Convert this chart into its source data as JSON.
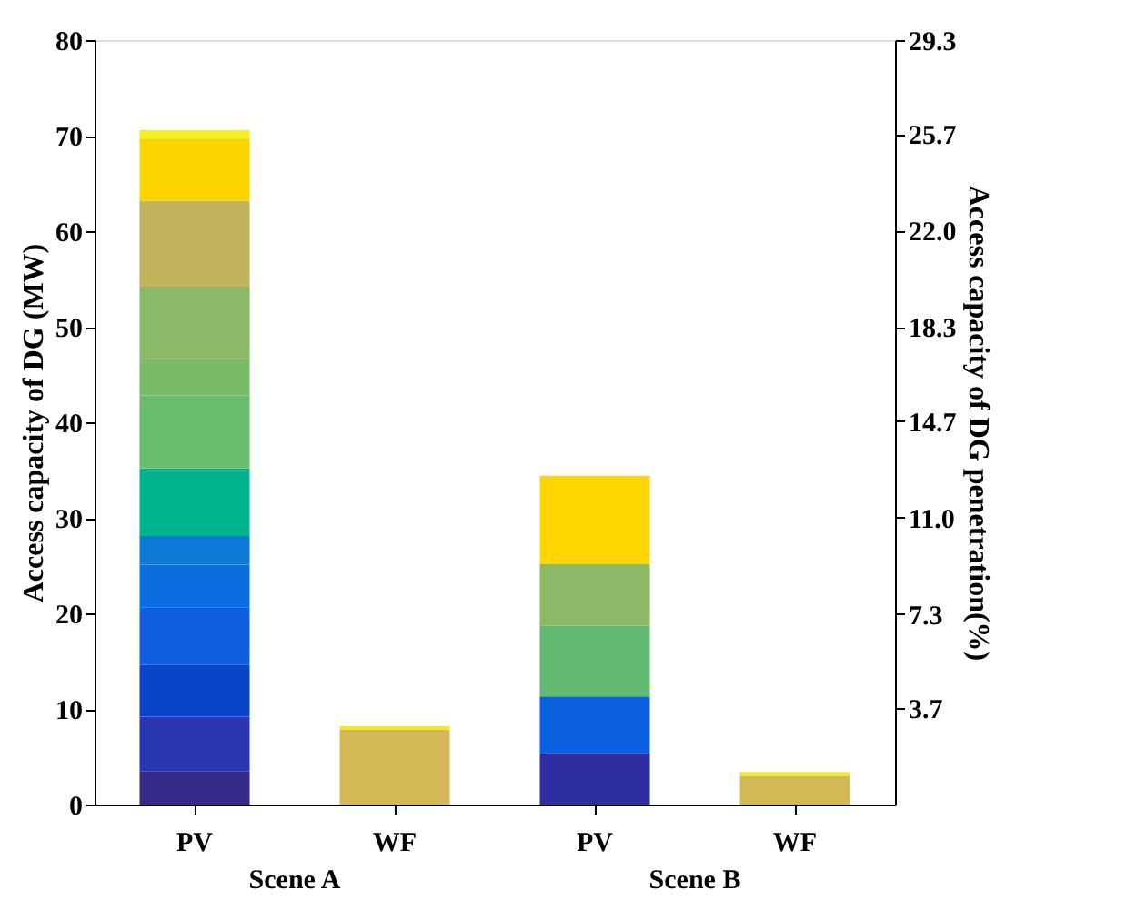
{
  "chart_data": {
    "type": "bar",
    "stacked": true,
    "categories": [
      "PV",
      "WF",
      "PV",
      "WF"
    ],
    "ylabel": "Access capacity of DG (MW)",
    "y2label": "Access capacity of DG penetration(%)",
    "annotations": [
      "Scene A",
      "Scene B"
    ],
    "ylim": [
      0,
      80
    ],
    "yticks": [
      0,
      10,
      20,
      30,
      40,
      50,
      60,
      70,
      80
    ],
    "y2lim": [
      0,
      29.3
    ],
    "y2ticks": [
      3.7,
      7.3,
      {
        "value": 11,
        "label": "11.0"
      },
      14.7,
      18.3,
      {
        "value": 22,
        "label": "22.0"
      },
      25.7,
      29.3
    ],
    "grid": false,
    "series": [
      {
        "values": [
          3.5,
          7.8,
          5.4,
          3.0
        ],
        "colors": [
          "#352a87",
          "#d4b855",
          "#2e2ea0",
          "#d4b855"
        ]
      },
      {
        "values": [
          5.7,
          0.4,
          5.9,
          0.4
        ],
        "colors": [
          "#2a35b0",
          "#f0e830",
          "#0a60e0",
          "#f0e830"
        ]
      },
      {
        "values": [
          5.4,
          null,
          7.4,
          null
        ],
        "colors": [
          "#0a45c8",
          null,
          "#62ba70",
          null
        ]
      },
      {
        "values": [
          6.0,
          null,
          6.5,
          null
        ],
        "colors": [
          "#0f5ee0",
          null,
          "#8cb866",
          null
        ]
      },
      {
        "values": [
          4.5,
          null,
          9.2,
          null
        ],
        "colors": [
          "#0a6ee0",
          null,
          "#fdd600",
          null
        ]
      },
      {
        "values": [
          3.0,
          null,
          null,
          null
        ],
        "colors": [
          "#0b78d8",
          null,
          null,
          null
        ]
      },
      {
        "values": [
          7.1,
          null,
          null,
          null
        ],
        "colors": [
          "#00b48f",
          null,
          null,
          null
        ]
      },
      {
        "values": [
          7.6,
          null,
          null,
          null
        ],
        "colors": [
          "#6abc6e",
          null,
          null,
          null
        ]
      },
      {
        "values": [
          3.8,
          null,
          null,
          null
        ],
        "colors": [
          "#78bc6a",
          null,
          null,
          null
        ]
      },
      {
        "values": [
          7.6,
          null,
          null,
          null
        ],
        "colors": [
          "#8ab966",
          null,
          null,
          null
        ]
      },
      {
        "values": [
          9.0,
          null,
          null,
          null
        ],
        "colors": [
          "#c2b45c",
          null,
          null,
          null
        ]
      },
      {
        "values": [
          6.5,
          null,
          null,
          null
        ],
        "colors": [
          "#fdd400",
          null,
          null,
          null
        ]
      },
      {
        "values": [
          0.9,
          null,
          null,
          null
        ],
        "colors": [
          "#f5f020",
          null,
          null,
          null
        ]
      }
    ]
  }
}
